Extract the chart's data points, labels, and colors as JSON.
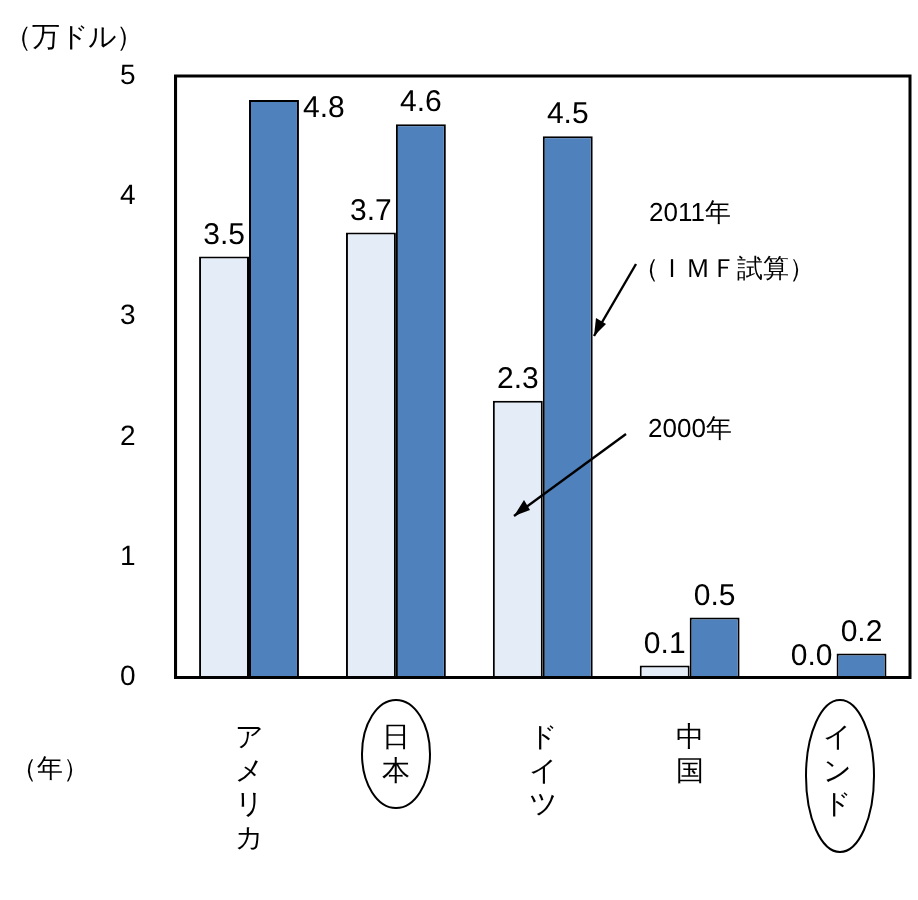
{
  "chart_data": {
    "type": "bar",
    "ylabel": "（万ドル）",
    "categories": [
      "アメリカ",
      "日本",
      "ドイツ",
      "中国",
      "インド"
    ],
    "series": [
      {
        "color": "#e4ecf7",
        "values": [
          3.5,
          3.7,
          2.3,
          0.1,
          0.0
        ],
        "value_labels": [
          "3.5",
          "3.7",
          "2.3",
          "0.1",
          "0.0"
        ]
      },
      {
        "color": "#4f81bd",
        "values": [
          4.8,
          4.6,
          4.5,
          0.5,
          0.2
        ],
        "value_labels": [
          "4.8",
          "4.6",
          "4.5",
          "0.5",
          "0.2"
        ]
      }
    ],
    "ylim": [
      0,
      5
    ],
    "yticks": [
      0,
      1,
      2,
      3,
      4,
      5
    ],
    "grid": false,
    "legend": false,
    "annotations": [
      "2011年",
      "（ＩＭＦ試算）",
      "2000年",
      "（年）"
    ]
  }
}
